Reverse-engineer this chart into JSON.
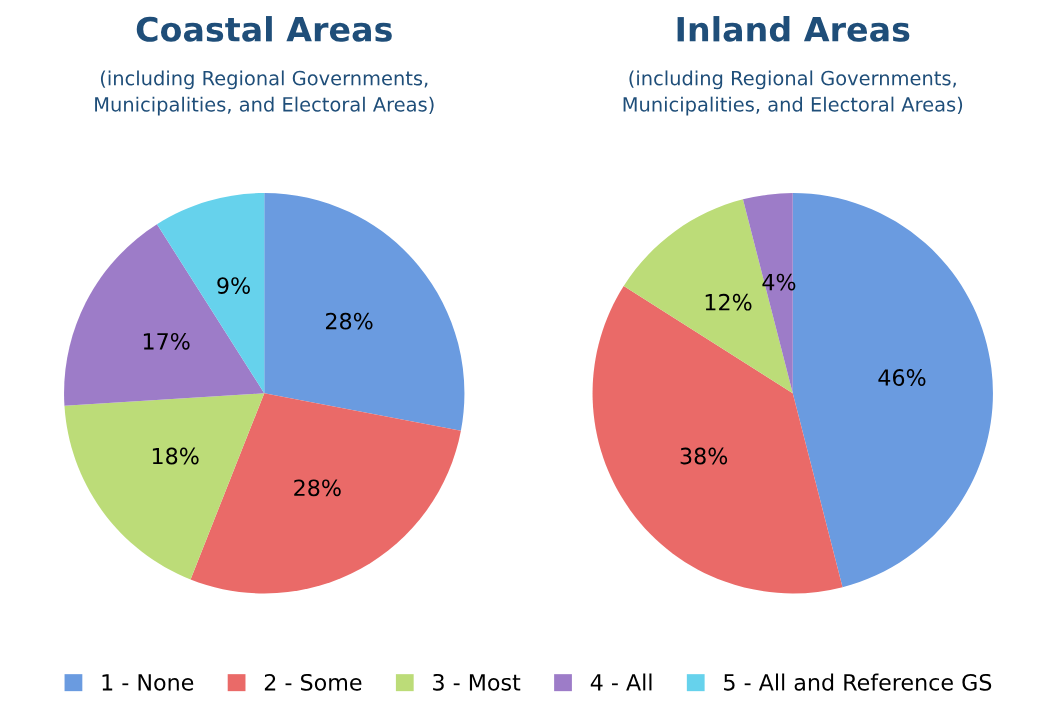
{
  "chart_data": [
    {
      "type": "pie",
      "title": "Coastal Areas",
      "subtitle": "(including Regional Governments,\nMunicipalities, and Electoral Areas)",
      "categories": [
        "1 - None",
        "2 - Some",
        "3 - Most",
        "4 - All",
        "5 - All and Reference GS"
      ],
      "values": [
        28,
        28,
        18,
        17,
        9
      ],
      "value_labels": [
        "28%",
        "28%",
        "18%",
        "17%",
        "9%"
      ],
      "colors": [
        "#6a9be0",
        "#ea6a68",
        "#bcdc78",
        "#9d7cc8",
        "#66d2ec"
      ],
      "legend": "bottom"
    },
    {
      "type": "pie",
      "title": "Inland Areas",
      "subtitle": "(including Regional Governments,\nMunicipalities, and Electoral Areas)",
      "categories": [
        null,
        null,
        null,
        null
      ],
      "values": [
        46,
        38,
        12,
        4
      ],
      "value_labels": [
        "46%",
        "38%",
        "12%",
        "4%"
      ],
      "colors": [
        "#6a9be0",
        "#ea6a68",
        "#bcdc78",
        "#9d7cc8"
      ]
    }
  ]
}
